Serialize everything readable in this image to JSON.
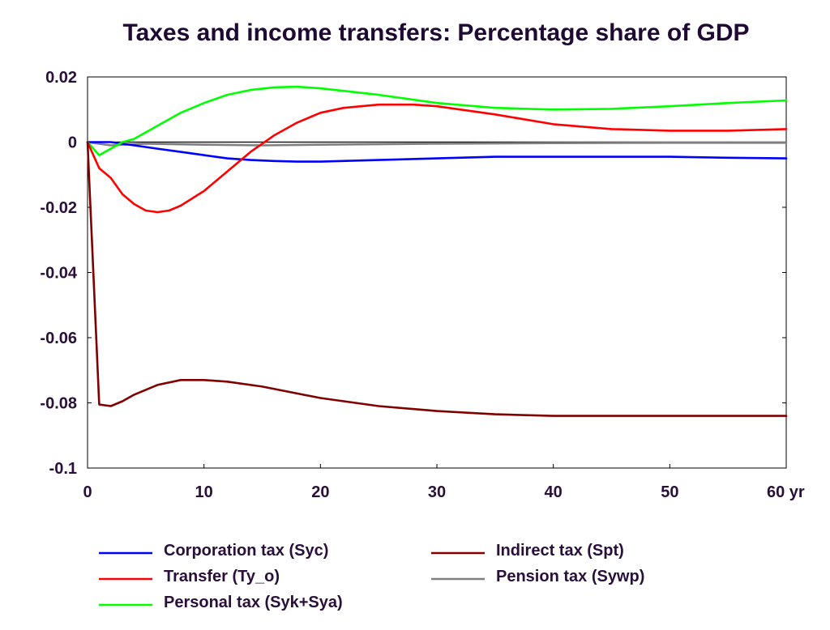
{
  "chart_data": {
    "type": "line",
    "title": "Taxes and income transfers: Percentage share of GDP",
    "xlabel": "",
    "ylabel": "",
    "xlim": [
      0,
      60
    ],
    "ylim": [
      -0.1,
      0.02
    ],
    "x_ticks": [
      0,
      10,
      20,
      30,
      40,
      50,
      60
    ],
    "x_tick_labels": [
      "0",
      "10",
      "20",
      "30",
      "40",
      "50",
      "60 yr"
    ],
    "y_ticks": [
      0.02,
      0,
      -0.02,
      -0.04,
      -0.06,
      -0.08,
      -0.1
    ],
    "y_tick_labels": [
      "0.02",
      "0",
      "-0.02",
      "-0.04",
      "-0.06",
      "-0.08",
      "-0.1"
    ],
    "grid": false,
    "legend_position": "bottom",
    "series": [
      {
        "name": "Corporation tax (Syc)",
        "color": "#0000ff",
        "x": [
          0,
          2,
          4,
          6,
          8,
          10,
          12,
          14,
          16,
          18,
          20,
          25,
          30,
          35,
          40,
          45,
          50,
          55,
          60
        ],
        "values": [
          0,
          0,
          -0.001,
          -0.002,
          -0.003,
          -0.004,
          -0.005,
          -0.0055,
          -0.0058,
          -0.006,
          -0.006,
          -0.0055,
          -0.005,
          -0.0045,
          -0.0045,
          -0.0045,
          -0.0045,
          -0.0048,
          -0.005
        ]
      },
      {
        "name": "Transfer (Ty_o)",
        "color": "#ff0000",
        "x": [
          0,
          1,
          2,
          3,
          4,
          5,
          6,
          7,
          8,
          10,
          12,
          14,
          16,
          18,
          20,
          22,
          25,
          28,
          30,
          35,
          40,
          45,
          50,
          55,
          60
        ],
        "values": [
          0,
          -0.008,
          -0.011,
          -0.016,
          -0.019,
          -0.021,
          -0.0215,
          -0.021,
          -0.0195,
          -0.015,
          -0.009,
          -0.003,
          0.002,
          0.006,
          0.009,
          0.0105,
          0.0115,
          0.0115,
          0.011,
          0.0085,
          0.0055,
          0.004,
          0.0035,
          0.0035,
          0.004
        ]
      },
      {
        "name": "Personal tax (Syk+Sya)",
        "color": "#00ff00",
        "x": [
          0,
          1,
          2,
          3,
          4,
          6,
          8,
          10,
          12,
          14,
          16,
          18,
          20,
          25,
          30,
          35,
          40,
          45,
          50,
          55,
          60
        ],
        "values": [
          0,
          -0.004,
          -0.002,
          0,
          0.001,
          0.005,
          0.009,
          0.012,
          0.0145,
          0.016,
          0.0168,
          0.017,
          0.0165,
          0.0145,
          0.012,
          0.0105,
          0.01,
          0.0102,
          0.011,
          0.012,
          0.0128
        ]
      },
      {
        "name": "Indirect tax (Spt)",
        "color": "#800000",
        "x": [
          0,
          1,
          2,
          3,
          4,
          6,
          8,
          10,
          12,
          15,
          20,
          25,
          30,
          35,
          40,
          45,
          50,
          55,
          60
        ],
        "values": [
          0,
          -0.0805,
          -0.081,
          -0.0795,
          -0.0775,
          -0.0745,
          -0.073,
          -0.073,
          -0.0735,
          -0.075,
          -0.0785,
          -0.081,
          -0.0825,
          -0.0835,
          -0.084,
          -0.084,
          -0.084,
          -0.084,
          -0.084
        ]
      },
      {
        "name": "Pension tax (Sywp)",
        "color": "#808080",
        "x": [
          0,
          2,
          5,
          10,
          15,
          20,
          30,
          40,
          50,
          60
        ],
        "values": [
          0,
          -0.001,
          -0.0005,
          -0.0008,
          -0.001,
          -0.0008,
          -0.0005,
          -0.0003,
          -0.0002,
          -0.0002
        ]
      },
      {
        "name": "",
        "color": "#1a1a1a",
        "x": [
          0,
          60
        ],
        "values": [
          0,
          0
        ]
      }
    ]
  }
}
